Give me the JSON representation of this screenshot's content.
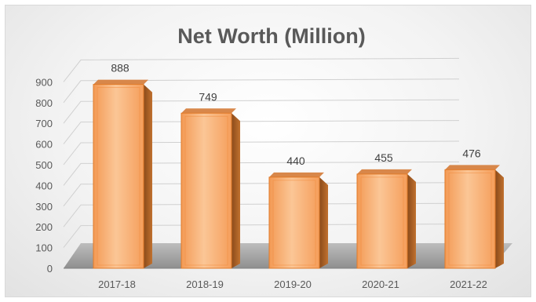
{
  "chart_data": {
    "type": "bar",
    "title": "Net Worth (Million)",
    "xlabel": "",
    "ylabel": "",
    "categories": [
      "2017-18",
      "2018-19",
      "2019-20",
      "2020-21",
      "2021-22"
    ],
    "values": [
      888,
      749,
      440,
      455,
      476
    ],
    "ylim": [
      0,
      900
    ],
    "yticks": [
      0,
      100,
      200,
      300,
      400,
      500,
      600,
      700,
      800,
      900
    ],
    "grid": true,
    "legend": "none",
    "style": "3d-column",
    "colors": {
      "bar_front": "#f6a866",
      "bar_front_light": "#fbc28f",
      "bar_side": "#b8692c",
      "bar_top": "#d8874a",
      "bar_outline": "#e07b2a",
      "floor": "#a6a6a6",
      "gridline": "#d0d0d0",
      "text": "#595959"
    }
  }
}
